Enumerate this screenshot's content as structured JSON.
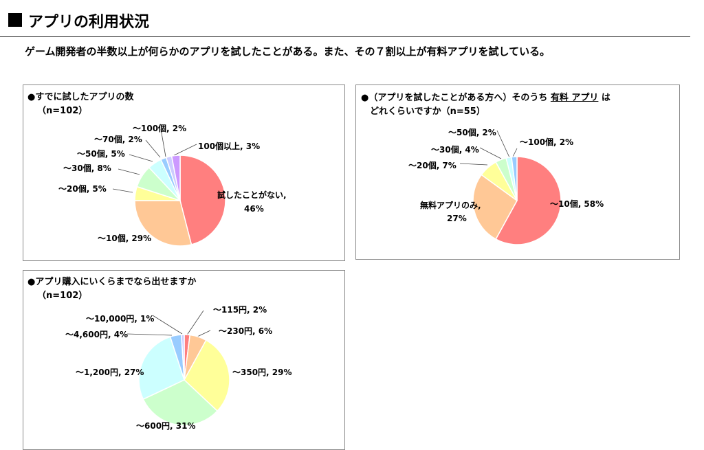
{
  "header": {
    "title": "アプリの利用状況",
    "subtitle": "ゲーム開発者の半数以上が何らかのアプリを試したことがある。また、その７割以上が有料アプリを試している。"
  },
  "chart_data": [
    {
      "type": "pie",
      "title": "●すでに試したアプリの数",
      "sample": "（n=102）",
      "categories": [
        "試したことがない",
        "～10個",
        "～20個",
        "～30個",
        "～50個",
        "～70個",
        "～100個",
        "100個以上"
      ],
      "values": [
        46,
        29,
        5,
        8,
        5,
        2,
        2,
        3
      ],
      "labels": [
        "試したことがない,",
        "～10個, 29%",
        "～20個, 5%",
        "～30個, 8%",
        "～50個, 5%",
        "～70個, 2%",
        "～100個, 2%",
        "100個以上, 3%"
      ],
      "label_extra": "46%",
      "colors": [
        "#FF7F7F",
        "#FFC896",
        "#FFFF99",
        "#CCFFCC",
        "#CCFFFF",
        "#99CCFF",
        "#CCCCFF",
        "#CC99FF"
      ]
    },
    {
      "type": "pie",
      "title_parts": [
        "●（アプリを試したことがある方へ）そのうち ",
        "有料 アプリ",
        " は"
      ],
      "title_line2": "どれくらいですか（n=55）",
      "categories": [
        "～10個",
        "無料アプリのみ",
        "～20個",
        "～30個",
        "～50個",
        "～100個"
      ],
      "values": [
        58,
        27,
        7,
        4,
        2,
        2
      ],
      "labels": [
        "～10個, 58%",
        "無料アプリのみ,",
        "～20個, 7%",
        "～30個, 4%",
        "～50個, 2%",
        "～100個, 2%"
      ],
      "label_extra": "27%",
      "colors": [
        "#FF7F7F",
        "#FFC896",
        "#FFFF99",
        "#CCFFCC",
        "#CCFFFF",
        "#99CCFF"
      ]
    },
    {
      "type": "pie",
      "title": "●アプリ購入にいくらまでなら出せますか",
      "sample": "（n=102）",
      "categories": [
        "～115円",
        "～230円",
        "～350円",
        "～600円",
        "～1,200円",
        "～4,600円",
        "～10,000円"
      ],
      "values": [
        2,
        6,
        29,
        31,
        27,
        4,
        1
      ],
      "labels": [
        "～115円, 2%",
        "～230円, 6%",
        "～350円, 29%",
        "～600円, 31%",
        "～1,200円, 27%",
        "～4,600円, 4%",
        "～10,000円, 1%"
      ],
      "colors": [
        "#FF7F7F",
        "#FFC896",
        "#FFFF99",
        "#CCFFCC",
        "#CCFFFF",
        "#99CCFF",
        "#CCCCFF"
      ]
    }
  ]
}
